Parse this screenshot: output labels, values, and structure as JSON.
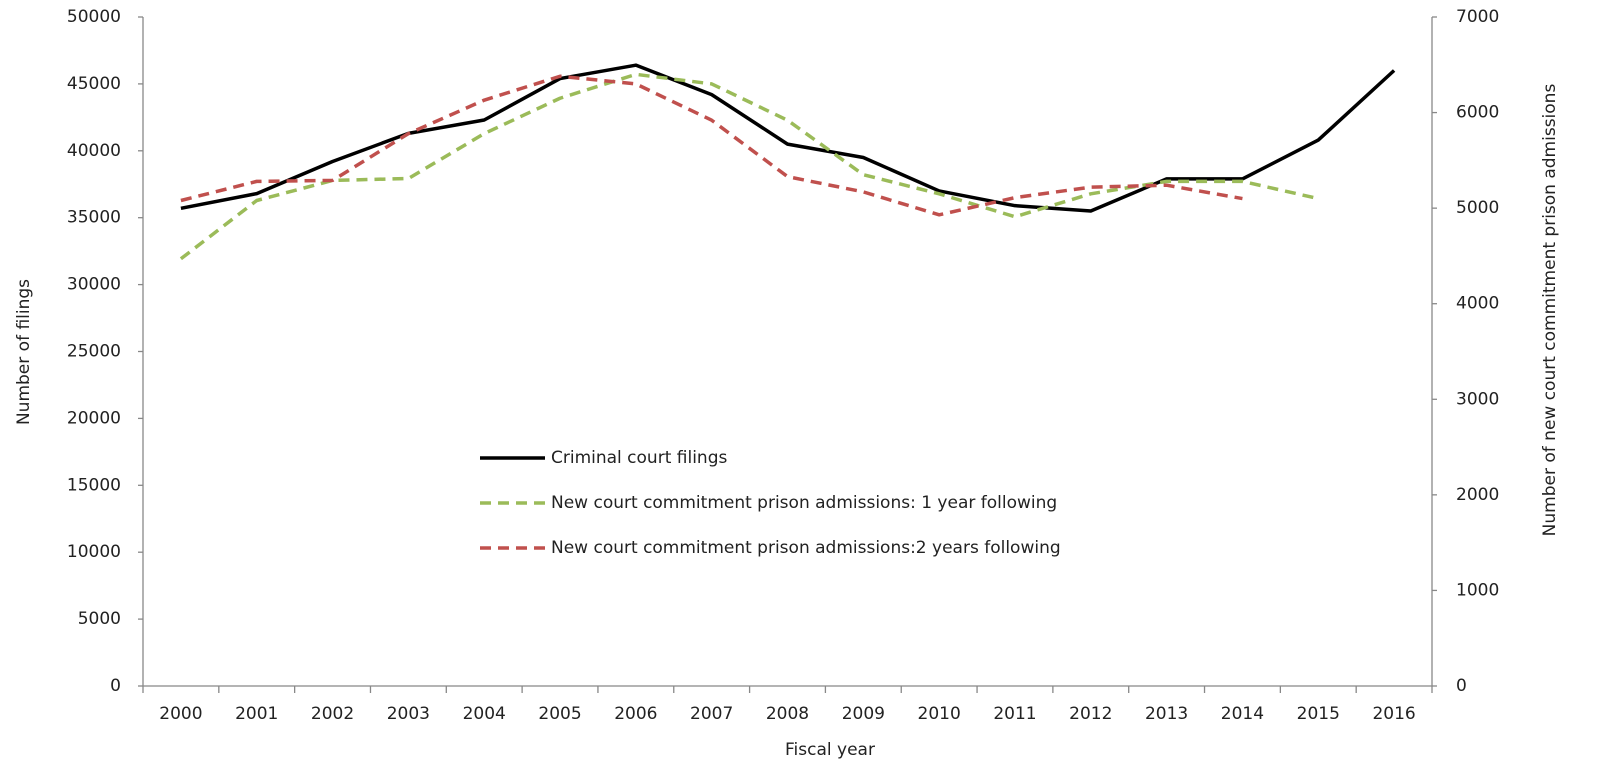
{
  "chart_data": {
    "type": "line",
    "xlabel": "Fiscal year",
    "ylabel": "Number of filings",
    "y2label": "Number of new court commitment prison admissions",
    "categories": [
      "2000",
      "2001",
      "2002",
      "2003",
      "2004",
      "2005",
      "2006",
      "2007",
      "2008",
      "2009",
      "2010",
      "2011",
      "2012",
      "2013",
      "2014",
      "2015",
      "2016"
    ],
    "series": [
      {
        "name": "Criminal court filings",
        "color": "#000000",
        "dash": false,
        "axis": "y",
        "values": [
          35700,
          36800,
          39200,
          41300,
          42300,
          45400,
          46400,
          44200,
          40500,
          39500,
          37000,
          35900,
          35500,
          37900,
          37900,
          40800,
          46000
        ]
      },
      {
        "name": "New court commitment prison admissions: 1 year following",
        "color": "#9bbb59",
        "dash": true,
        "axis": "y2",
        "values": [
          4470,
          5080,
          5290,
          5310,
          5780,
          6150,
          6400,
          6300,
          5920,
          5350,
          5150,
          4910,
          5150,
          5280,
          5280,
          5100,
          null
        ]
      },
      {
        "name": "New court commitment prison admissions:2 years following",
        "color": "#c0504d",
        "dash": true,
        "axis": "y2",
        "values": [
          5080,
          5280,
          5290,
          5780,
          6130,
          6380,
          6300,
          5920,
          5330,
          5170,
          4930,
          5110,
          5220,
          5240,
          5100,
          null,
          null
        ]
      }
    ],
    "ylim": [
      0,
      50000
    ],
    "yticks": [
      0,
      5000,
      10000,
      15000,
      20000,
      25000,
      30000,
      35000,
      40000,
      45000,
      50000
    ],
    "y2lim": [
      0,
      7000
    ],
    "y2ticks": [
      0,
      1000,
      2000,
      3000,
      4000,
      5000,
      6000,
      7000
    ],
    "grid": false
  }
}
